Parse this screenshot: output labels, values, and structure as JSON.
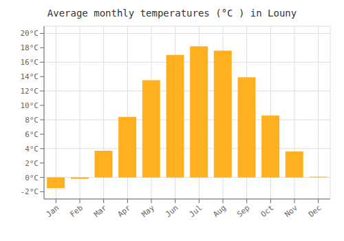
{
  "chart_data": {
    "type": "bar",
    "title": "Average monthly temperatures (°C ) in Louny",
    "categories": [
      "Jan",
      "Feb",
      "Mar",
      "Apr",
      "May",
      "Jun",
      "Jul",
      "Aug",
      "Sep",
      "Oct",
      "Nov",
      "Dec"
    ],
    "values": [
      -1.5,
      -0.2,
      3.7,
      8.4,
      13.5,
      17.0,
      18.2,
      17.6,
      13.9,
      8.6,
      3.6,
      0.1
    ],
    "color": "#FFB020",
    "ylim": [
      -3,
      21
    ],
    "yticks": [
      {
        "value": -2,
        "label": "-2°C"
      },
      {
        "value": 0,
        "label": "0°C"
      },
      {
        "value": 2,
        "label": "2°C"
      },
      {
        "value": 4,
        "label": "4°C"
      },
      {
        "value": 6,
        "label": "6°C"
      },
      {
        "value": 8,
        "label": "8°C"
      },
      {
        "value": 10,
        "label": "10°C"
      },
      {
        "value": 12,
        "label": "12°C"
      },
      {
        "value": 14,
        "label": "14°C"
      },
      {
        "value": 16,
        "label": "16°C"
      },
      {
        "value": 18,
        "label": "18°C"
      },
      {
        "value": 20,
        "label": "20°C"
      }
    ],
    "grid": true
  }
}
